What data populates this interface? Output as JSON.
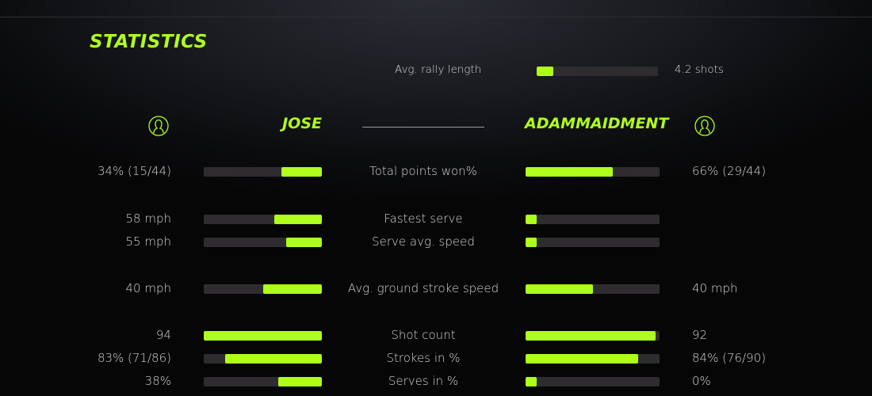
{
  "title": "STATISTICS",
  "accent_color": "#aeff1c",
  "track_color": "#2e2c2e",
  "rally": {
    "label": "Avg. rally length",
    "value": "4.2 shots",
    "fill_percent": 14
  },
  "players": {
    "left": {
      "name": "JOSE",
      "icon": "user-circle-icon"
    },
    "right": {
      "name": "ADAMMAIDMENT",
      "icon": "user-circle-icon"
    }
  },
  "rows": [
    {
      "name": "Total points won%",
      "left": "34% (15/44)",
      "right": "66% (29/44)",
      "left_fill": 34,
      "right_fill": 65
    },
    {
      "name": "Fastest serve",
      "left": "58 mph",
      "right": "",
      "left_fill": 40,
      "right_fill": 8
    },
    {
      "name": "Serve avg. speed",
      "left": "55 mph",
      "right": "",
      "left_fill": 30,
      "right_fill": 8
    },
    {
      "name": "Avg. ground stroke speed",
      "left": "40 mph",
      "right": "40 mph",
      "left_fill": 50,
      "right_fill": 50
    },
    {
      "name": "Shot count",
      "left": "94",
      "right": "92",
      "left_fill": 100,
      "right_fill": 97
    },
    {
      "name": "Strokes in %",
      "left": "83% (71/86)",
      "right": "84% (76/90)",
      "left_fill": 82,
      "right_fill": 84
    },
    {
      "name": "Serves in %",
      "left": "38%",
      "right": "0%",
      "left_fill": 37,
      "right_fill": 8
    }
  ]
}
